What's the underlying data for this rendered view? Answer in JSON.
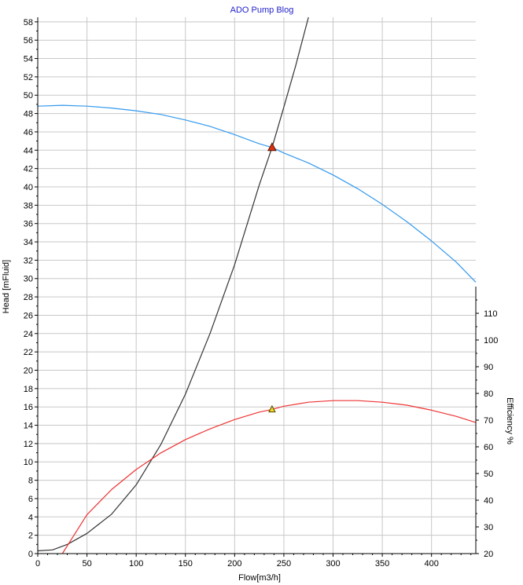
{
  "chart_data": {
    "type": "line",
    "title": "ADO Pump Blog",
    "xlabel": "Flow[m3/h]",
    "ylabel": "Head [mFluid]",
    "y2label": "Efficiency %",
    "xlim": [
      0,
      445
    ],
    "ylim": [
      0,
      58.5
    ],
    "y2lim": [
      20,
      120
    ],
    "x_ticks": [
      0,
      50,
      100,
      150,
      200,
      250,
      300,
      350,
      400
    ],
    "y_ticks": [
      0,
      2,
      4,
      6,
      8,
      10,
      12,
      14,
      16,
      18,
      20,
      22,
      24,
      26,
      28,
      30,
      32,
      34,
      36,
      38,
      40,
      42,
      44,
      46,
      48,
      50,
      52,
      54,
      56,
      58
    ],
    "y2_ticks": [
      20,
      30,
      40,
      50,
      60,
      70,
      80,
      90,
      100,
      110
    ],
    "grid": true,
    "series": [
      {
        "axis": "left",
        "color": "#3399ee",
        "points": [
          [
            0,
            48.8
          ],
          [
            25,
            48.9
          ],
          [
            50,
            48.8
          ],
          [
            75,
            48.6
          ],
          [
            100,
            48.3
          ],
          [
            125,
            47.9
          ],
          [
            150,
            47.3
          ],
          [
            175,
            46.6
          ],
          [
            200,
            45.7
          ],
          [
            225,
            44.7
          ],
          [
            238,
            44.3
          ],
          [
            250,
            43.7
          ],
          [
            275,
            42.6
          ],
          [
            300,
            41.3
          ],
          [
            325,
            39.8
          ],
          [
            350,
            38.1
          ],
          [
            375,
            36.2
          ],
          [
            400,
            34.1
          ],
          [
            425,
            31.8
          ],
          [
            445,
            29.6
          ]
        ]
      },
      {
        "axis": "left",
        "color": "#333333",
        "points": [
          [
            0,
            0.3
          ],
          [
            15,
            0.4
          ],
          [
            30,
            1.0
          ],
          [
            50,
            2.2
          ],
          [
            75,
            4.3
          ],
          [
            100,
            7.5
          ],
          [
            125,
            11.9
          ],
          [
            150,
            17.4
          ],
          [
            175,
            24.0
          ],
          [
            200,
            31.5
          ],
          [
            225,
            40.2
          ],
          [
            238,
            44.3
          ],
          [
            250,
            48.7
          ],
          [
            262,
            53.2
          ],
          [
            275,
            58.5
          ]
        ]
      },
      {
        "axis": "right",
        "color": "#ee3333",
        "points": [
          [
            25,
            20.0
          ],
          [
            50,
            34.6
          ],
          [
            75,
            44.0
          ],
          [
            100,
            51.5
          ],
          [
            125,
            57.7
          ],
          [
            150,
            62.7
          ],
          [
            175,
            66.7
          ],
          [
            200,
            70.2
          ],
          [
            225,
            73.0
          ],
          [
            238,
            74.0
          ],
          [
            250,
            75.2
          ],
          [
            275,
            76.7
          ],
          [
            300,
            77.3
          ],
          [
            325,
            77.3
          ],
          [
            350,
            76.7
          ],
          [
            375,
            75.6
          ],
          [
            400,
            73.7
          ],
          [
            425,
            71.4
          ],
          [
            445,
            69.1
          ]
        ]
      }
    ],
    "markers": [
      {
        "x": 238,
        "y": 44.3,
        "axis": "left",
        "fill": "#dd3311",
        "stroke": "#551100"
      },
      {
        "x": 238,
        "y": 74.0,
        "axis": "right",
        "fill": "#eedd22",
        "stroke": "#554400"
      }
    ]
  }
}
